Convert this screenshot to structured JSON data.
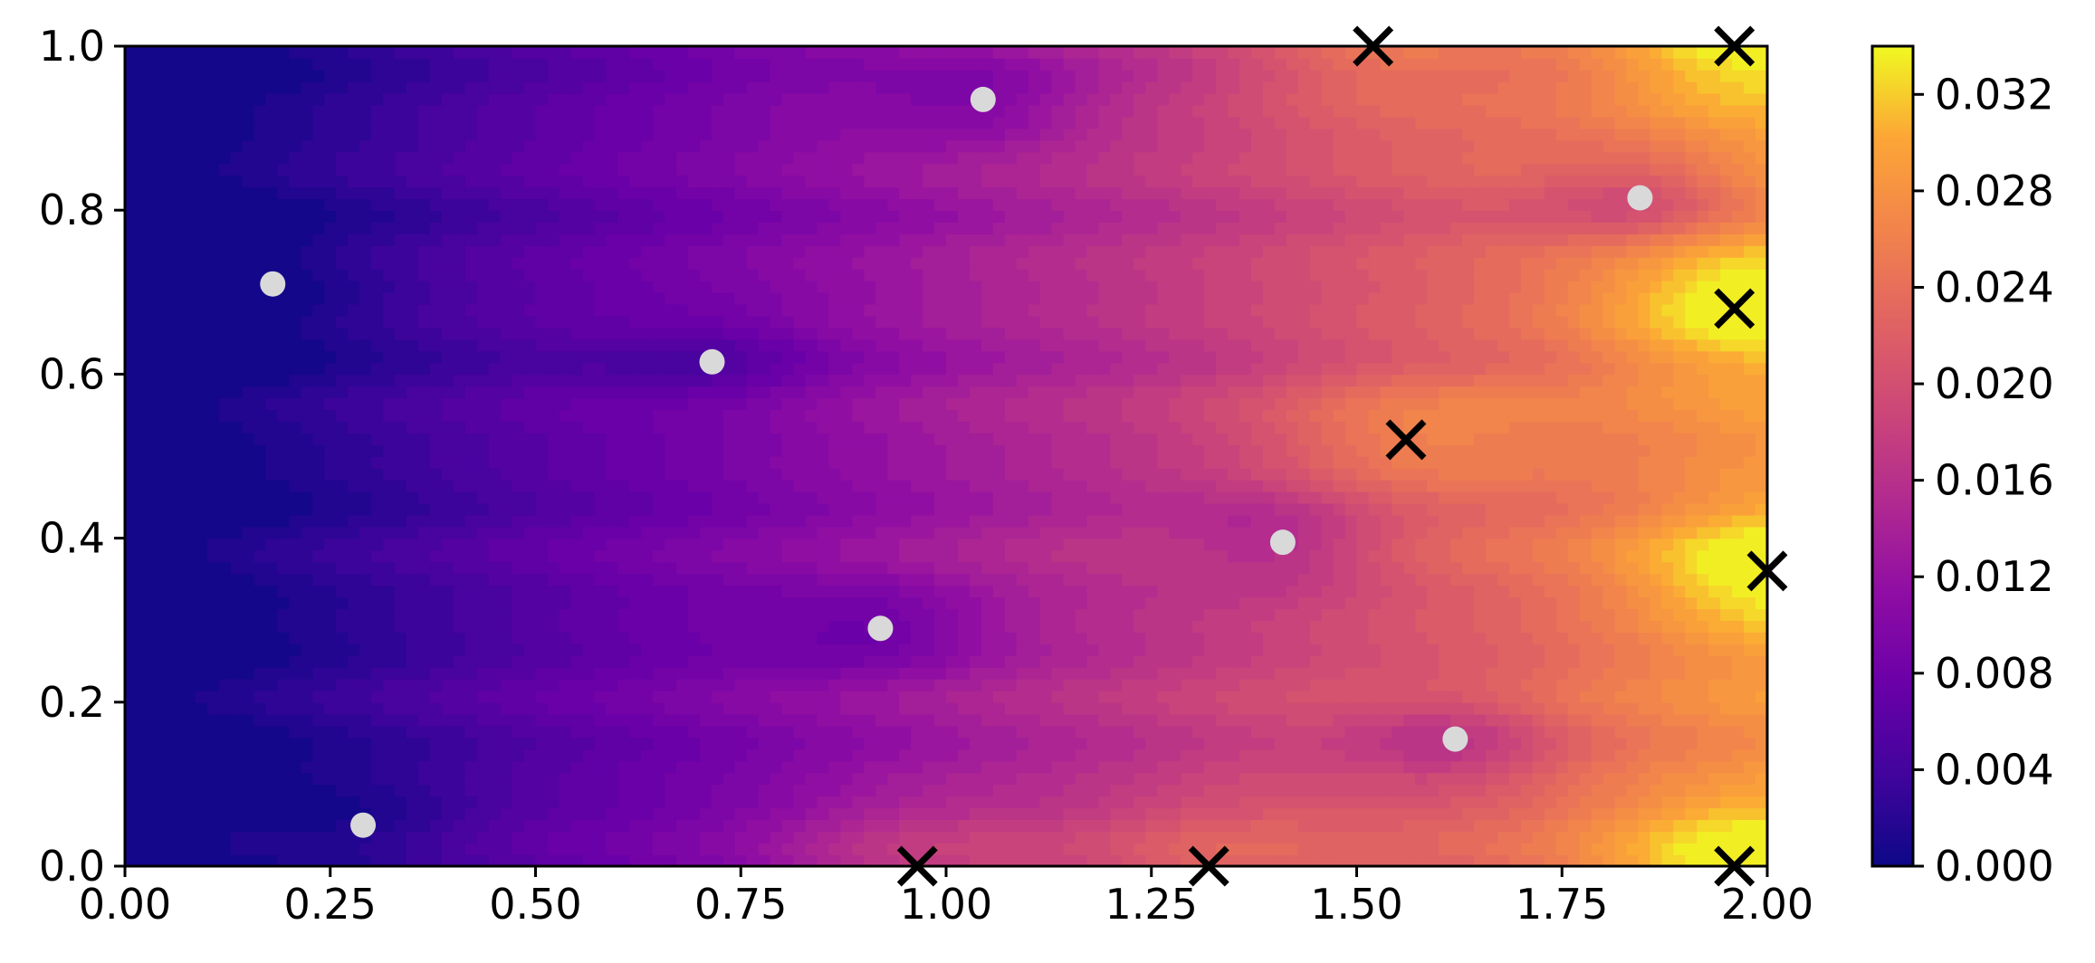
{
  "chart_data": {
    "type": "heatmap",
    "title": "",
    "xlabel": "",
    "ylabel": "",
    "xlim": [
      0,
      2
    ],
    "ylim": [
      0,
      1
    ],
    "x_ticks": [
      "0.00",
      "0.25",
      "0.50",
      "0.75",
      "1.00",
      "1.25",
      "1.50",
      "1.75",
      "2.00"
    ],
    "y_ticks": [
      "0.0",
      "0.2",
      "0.4",
      "0.6",
      "0.8",
      "1.0"
    ],
    "colorbar": {
      "colormap": "plasma",
      "range": [
        0,
        0.034
      ],
      "ticks": [
        "0.000",
        "0.004",
        "0.008",
        "0.012",
        "0.016",
        "0.020",
        "0.024",
        "0.028",
        "0.032"
      ],
      "levels": 34
    },
    "low_points": [
      {
        "x": 0.18,
        "y": 0.71
      },
      {
        "x": 0.29,
        "y": 0.05
      },
      {
        "x": 0.715,
        "y": 0.615
      },
      {
        "x": 0.92,
        "y": 0.29
      },
      {
        "x": 1.045,
        "y": 0.935
      },
      {
        "x": 1.41,
        "y": 0.395
      },
      {
        "x": 1.62,
        "y": 0.155
      },
      {
        "x": 1.845,
        "y": 0.815
      }
    ],
    "high_points": [
      {
        "x": 0.965,
        "y": 0.0
      },
      {
        "x": 1.32,
        "y": 0.0
      },
      {
        "x": 1.52,
        "y": 1.0
      },
      {
        "x": 1.56,
        "y": 0.52
      },
      {
        "x": 1.96,
        "y": 1.0
      },
      {
        "x": 1.96,
        "y": 0.68
      },
      {
        "x": 2.0,
        "y": 0.36
      },
      {
        "x": 1.96,
        "y": 0.0
      }
    ],
    "low_marker": {
      "shape": "circle",
      "color": "#d9d9d9"
    },
    "high_marker": {
      "shape": "x",
      "color": "#000000"
    },
    "grid": false
  }
}
